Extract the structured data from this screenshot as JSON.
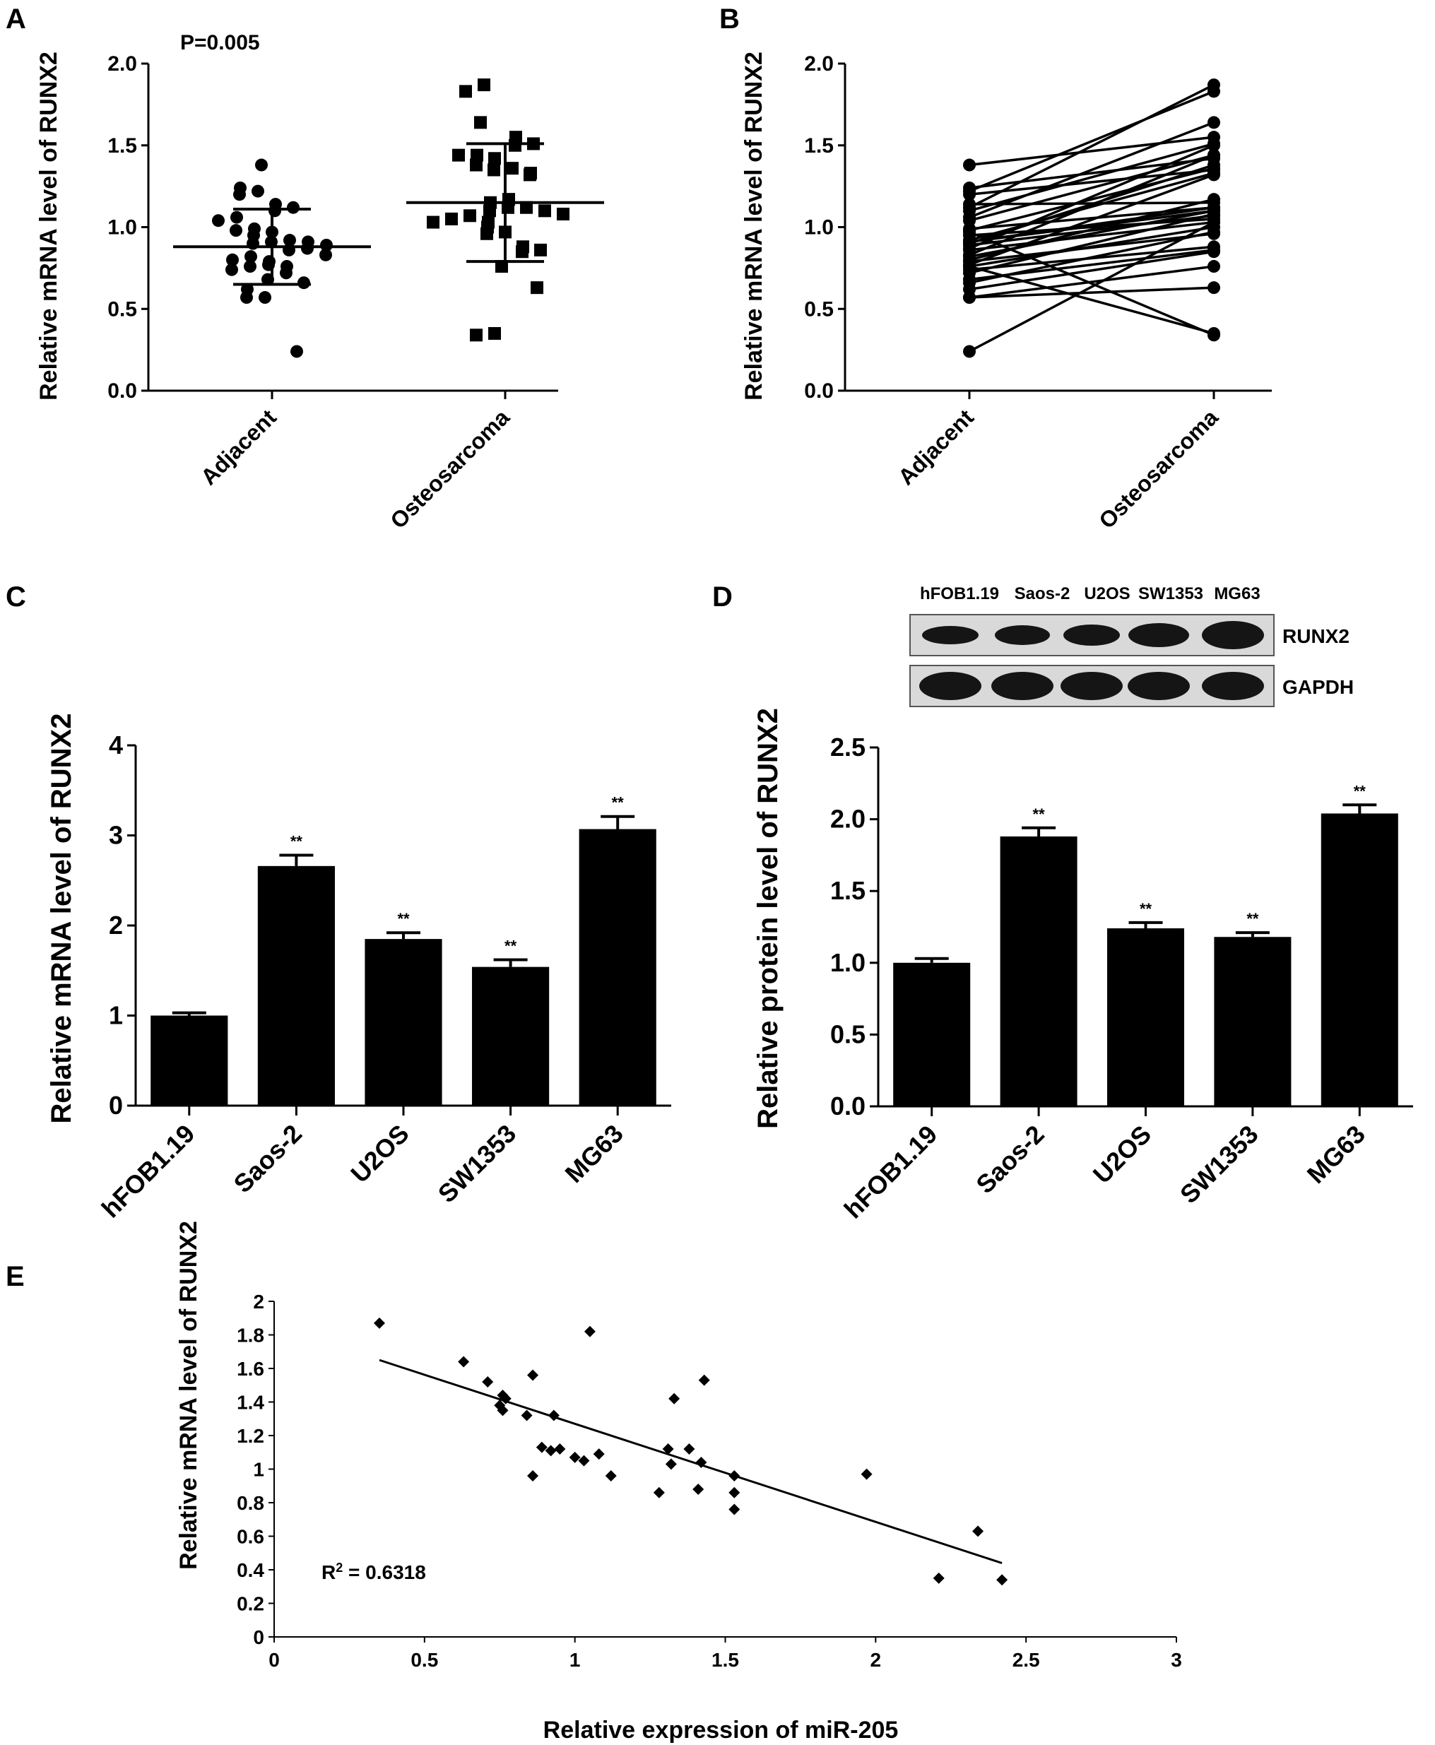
{
  "panels": {
    "A": {
      "label": "A",
      "pvalue": "P=0.005"
    },
    "B": {
      "label": "B"
    },
    "C": {
      "label": "C"
    },
    "D": {
      "label": "D"
    },
    "E": {
      "label": "E",
      "r2_base": "R",
      "r2_sup": "2",
      "r2_value": " = 0.6318"
    }
  },
  "blot": {
    "lanes": [
      "hFOB1.19",
      "Saos-2",
      "U2OS",
      "SW1353",
      "MG63"
    ],
    "bands": [
      "RUNX2",
      "GAPDH"
    ]
  },
  "chart_data": [
    {
      "id": "A",
      "type": "scatter",
      "categories": [
        "Adjacent",
        "Osteosarcoma"
      ],
      "ylabel": "Relative mRNA level of RUNX2",
      "ylim": [
        0,
        2
      ],
      "yticks": [
        "0.0",
        "0.5",
        "1.0",
        "1.5",
        "2.0"
      ],
      "series": [
        {
          "category": "Adjacent",
          "marker": "circle",
          "values": [
            1.38,
            1.24,
            1.22,
            1.2,
            1.14,
            1.12,
            1.1,
            1.06,
            1.04,
            0.99,
            0.98,
            0.97,
            0.95,
            0.92,
            0.91,
            0.91,
            0.9,
            0.89,
            0.87,
            0.86,
            0.83,
            0.82,
            0.8,
            0.79,
            0.77,
            0.76,
            0.76,
            0.74,
            0.72,
            0.68,
            0.66,
            0.62,
            0.57,
            0.57,
            0.24
          ],
          "mean": 0.88,
          "sd_upper": 1.11,
          "sd_lower": 0.65
        },
        {
          "category": "Osteosarcoma",
          "marker": "square",
          "values": [
            1.87,
            1.83,
            1.64,
            1.55,
            1.51,
            1.5,
            1.44,
            1.44,
            1.42,
            1.38,
            1.36,
            1.35,
            1.33,
            1.32,
            1.17,
            1.15,
            1.12,
            1.12,
            1.1,
            1.1,
            1.08,
            1.07,
            1.05,
            1.03,
            1.03,
            1.0,
            0.97,
            0.96,
            0.88,
            0.86,
            0.85,
            0.76,
            0.63,
            0.35,
            0.34
          ],
          "mean": 1.15,
          "sd_upper": 1.51,
          "sd_lower": 0.79
        }
      ]
    },
    {
      "id": "B",
      "type": "line",
      "categories": [
        "Adjacent",
        "Osteosarcoma"
      ],
      "ylabel": "Relative mRNA level of RUNX2",
      "ylim": [
        0,
        2
      ],
      "yticks": [
        "0.0",
        "0.5",
        "1.0",
        "1.5",
        "2.0"
      ],
      "pairs": [
        [
          1.38,
          1.55
        ],
        [
          1.24,
          1.42
        ],
        [
          1.22,
          1.83
        ],
        [
          1.12,
          1.87
        ],
        [
          1.1,
          1.51
        ],
        [
          1.06,
          1.64
        ],
        [
          1.04,
          1.44
        ],
        [
          0.99,
          1.12
        ],
        [
          0.98,
          1.36
        ],
        [
          0.95,
          1.05
        ],
        [
          0.92,
          1.33
        ],
        [
          0.91,
          1.1
        ],
        [
          0.9,
          1.38
        ],
        [
          0.89,
          1.07
        ],
        [
          0.87,
          1.5
        ],
        [
          0.86,
          1.03
        ],
        [
          0.83,
          1.44
        ],
        [
          0.82,
          1.1
        ],
        [
          0.8,
          1.17
        ],
        [
          0.79,
          0.96
        ],
        [
          0.77,
          1.32
        ],
        [
          0.76,
          0.35
        ],
        [
          0.76,
          1.0
        ],
        [
          0.74,
          0.88
        ],
        [
          0.72,
          1.08
        ],
        [
          0.68,
          0.86
        ],
        [
          0.66,
          0.97
        ],
        [
          0.62,
          0.85
        ],
        [
          0.57,
          0.76
        ],
        [
          0.57,
          0.63
        ],
        [
          0.24,
          1.03
        ],
        [
          1.2,
          1.35
        ],
        [
          1.14,
          1.15
        ],
        [
          0.97,
          0.34
        ],
        [
          0.91,
          1.12
        ]
      ]
    },
    {
      "id": "C",
      "type": "bar",
      "categories": [
        "hFOB1.19",
        "Saos-2",
        "U2OS",
        "SW1353",
        "MG63"
      ],
      "values": [
        1.0,
        2.66,
        1.85,
        1.54,
        3.07
      ],
      "errors": [
        0.03,
        0.12,
        0.07,
        0.08,
        0.14
      ],
      "annotations": [
        "",
        "**",
        "**",
        "**",
        "**"
      ],
      "ylabel": "Relative mRNA level of RUNX2",
      "ylim": [
        0,
        4
      ],
      "yticks": [
        "0",
        "1",
        "2",
        "3",
        "4"
      ]
    },
    {
      "id": "D",
      "type": "bar",
      "categories": [
        "hFOB1.19",
        "Saos-2",
        "U2OS",
        "SW1353",
        "MG63"
      ],
      "values": [
        1.0,
        1.88,
        1.24,
        1.18,
        2.04
      ],
      "errors": [
        0.03,
        0.06,
        0.04,
        0.03,
        0.06
      ],
      "annotations": [
        "",
        "**",
        "**",
        "**",
        "**"
      ],
      "ylabel": "Relative protein level of RUNX2",
      "ylim": [
        0,
        2.5
      ],
      "yticks": [
        "0.0",
        "0.5",
        "1.0",
        "1.5",
        "2.0",
        "2.5"
      ]
    },
    {
      "id": "E",
      "type": "scatter",
      "xlabel": "Relative expression of miR-205",
      "ylabel": "Relative mRNA level of RUNX2",
      "xlim": [
        0,
        3
      ],
      "ylim": [
        0,
        2
      ],
      "xticks": [
        "0",
        "0.5",
        "1",
        "1.5",
        "2",
        "2.5",
        "3"
      ],
      "yticks": [
        "0",
        "0.2",
        "0.4",
        "0.6",
        "0.8",
        "1",
        "1.2",
        "1.4",
        "1.6",
        "1.8",
        "2"
      ],
      "points": [
        [
          0.35,
          1.87
        ],
        [
          0.63,
          1.64
        ],
        [
          0.71,
          1.52
        ],
        [
          0.75,
          1.38
        ],
        [
          0.76,
          1.44
        ],
        [
          0.76,
          1.35
        ],
        [
          0.77,
          1.42
        ],
        [
          0.84,
          1.32
        ],
        [
          0.86,
          1.56
        ],
        [
          0.86,
          0.96
        ],
        [
          0.89,
          1.13
        ],
        [
          0.92,
          1.11
        ],
        [
          0.93,
          1.32
        ],
        [
          0.95,
          1.12
        ],
        [
          1.0,
          1.07
        ],
        [
          1.03,
          1.05
        ],
        [
          1.05,
          1.82
        ],
        [
          1.08,
          1.09
        ],
        [
          1.12,
          0.96
        ],
        [
          1.28,
          0.86
        ],
        [
          1.31,
          1.12
        ],
        [
          1.32,
          1.03
        ],
        [
          1.33,
          1.42
        ],
        [
          1.38,
          1.12
        ],
        [
          1.41,
          0.88
        ],
        [
          1.42,
          1.04
        ],
        [
          1.43,
          1.53
        ],
        [
          1.53,
          0.96
        ],
        [
          1.53,
          0.86
        ],
        [
          1.53,
          0.76
        ],
        [
          1.97,
          0.97
        ],
        [
          2.21,
          0.35
        ],
        [
          2.34,
          0.63
        ],
        [
          2.42,
          0.34
        ]
      ],
      "fit": {
        "x": [
          0.35,
          2.42
        ],
        "y": [
          1.65,
          0.44
        ]
      }
    }
  ]
}
